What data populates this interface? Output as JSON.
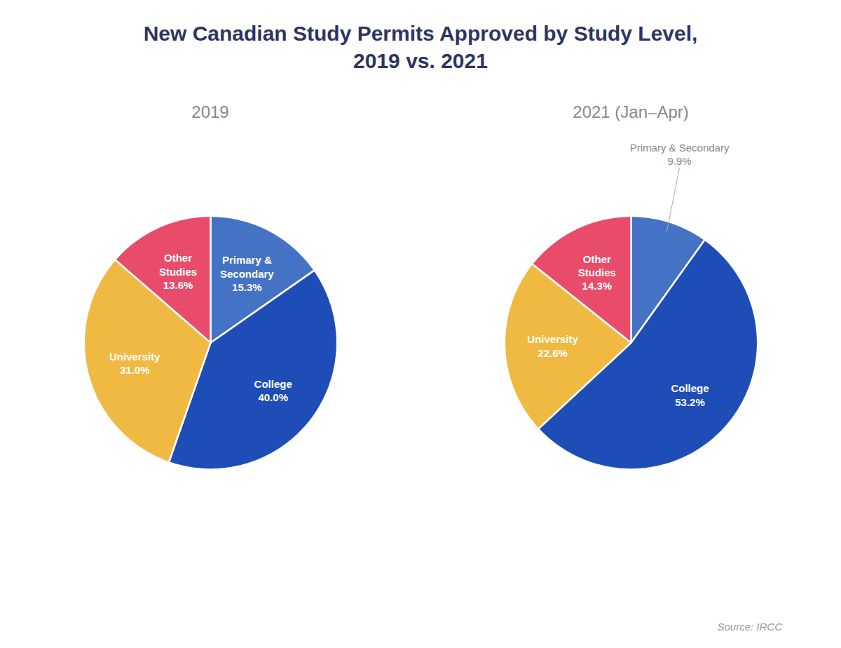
{
  "title": "New Canadian Study Permits Approved by Study Level,\n2019 vs. 2021",
  "caption": "Source: IRCC",
  "chart_data": [
    {
      "type": "pie",
      "subtitle": "2019",
      "categories": [
        "Primary &\nSecondary",
        "College",
        "University",
        "Other\nStudies"
      ],
      "values": [
        15.3,
        40.0,
        31.0,
        13.6
      ],
      "value_labels": [
        "15.3%",
        "40.0%",
        "31.0%",
        "13.6%"
      ],
      "colors": [
        "#4472c4",
        "#1e4db7",
        "#f0b942",
        "#e84c6a"
      ],
      "data_labels": true
    },
    {
      "type": "pie",
      "subtitle": "2021 (Jan–Apr)",
      "categories": [
        "Primary & Secondary",
        "College",
        "University",
        "Other\nStudies"
      ],
      "values": [
        9.9,
        53.2,
        22.6,
        14.3
      ],
      "value_labels": [
        "9.9%",
        "53.2%",
        "22.6%",
        "14.3%"
      ],
      "colors": [
        "#4472c4",
        "#1e4db7",
        "#f0b942",
        "#e84c6a"
      ],
      "data_labels": true
    }
  ]
}
